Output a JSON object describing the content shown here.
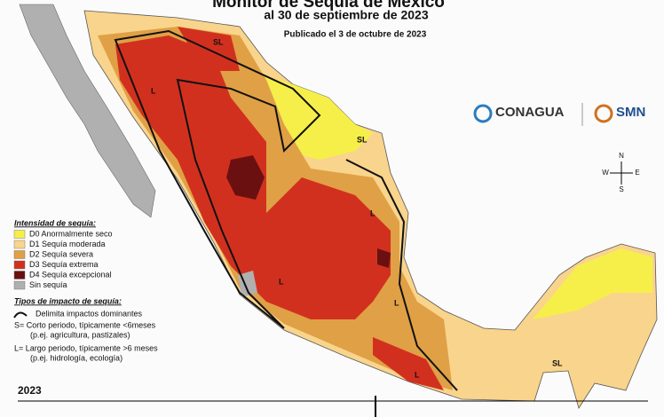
{
  "header": {
    "title": "Monitor de Sequía de México",
    "subtitle": "al 30 de septiembre de 2023",
    "published": "Publicado el 3 de octubre de 2023"
  },
  "logos": {
    "conagua": "CONAGUA",
    "smn": "SMN"
  },
  "compass": {
    "n": "N",
    "s": "S",
    "e": "E",
    "w": "W"
  },
  "legend": {
    "title": "Intensidad de sequía:",
    "items": [
      {
        "label": "D0 Anormalmente seco",
        "color": "#f6ef4a"
      },
      {
        "label": "D1 Sequía moderada",
        "color": "#f9d48c"
      },
      {
        "label": "D2 Sequía severa",
        "color": "#e0a045"
      },
      {
        "label": "D3 Sequía extrema",
        "color": "#d2301f"
      },
      {
        "label": "D4 Sequía excepcional",
        "color": "#6b1010"
      },
      {
        "label": "Sin sequía",
        "color": "#b0b0b0"
      }
    ]
  },
  "impact_legend": {
    "title": "Tipos de impacto de sequía:",
    "line": "Delimita impactos dominantes",
    "short": "S= Corto periodo, típicamente <6meses",
    "short_example": "(p.ej. agricultura, pastizales)",
    "long": "L= Largo periodo, típicamente >6 meses",
    "long_example": "(p.ej. hidrología, ecología)"
  },
  "map_labels": [
    "SL",
    "L",
    "SL",
    "L",
    "L",
    "L",
    "L",
    "SL"
  ],
  "timeline": {
    "year": "2023"
  }
}
